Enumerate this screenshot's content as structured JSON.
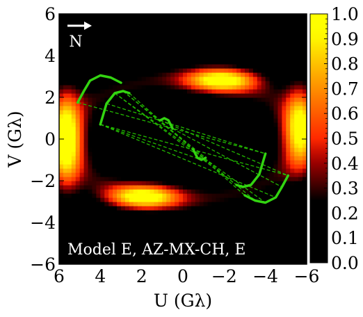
{
  "chart_data": {
    "type": "heatmap",
    "xlabel": "U (Gλ)",
    "ylabel": "V (Gλ)",
    "xlim": [
      6,
      -6
    ],
    "ylim": [
      -6,
      6
    ],
    "x_ticks": [
      "6",
      "4",
      "2",
      "0",
      "−2",
      "−4",
      "−6"
    ],
    "y_ticks": [
      "−6",
      "−4",
      "−2",
      "0",
      "2",
      "4",
      "6"
    ],
    "colorbar": {
      "range": [
        0.0,
        1.0
      ],
      "colormap": "gnuplot2",
      "ticks": [
        "0.0",
        "0.1",
        "0.2",
        "0.3",
        "0.4",
        "0.5",
        "0.6",
        "0.7",
        "0.8",
        "0.9",
        "1.0"
      ]
    },
    "annotation": "Model E, AZ-MX-CH, E",
    "compass_label": "N",
    "intensity_blobs": [
      {
        "u": 5.7,
        "v": 0.0,
        "su": 0.55,
        "sv": 1.6,
        "peak": 0.9
      },
      {
        "u": -5.7,
        "v": 0.6,
        "su": 0.55,
        "sv": 1.4,
        "peak": 0.78
      },
      {
        "u": -1.9,
        "v": 2.85,
        "su": 1.2,
        "sv": 0.4,
        "peak": 0.82
      },
      {
        "u": 1.9,
        "v": -2.75,
        "su": 1.2,
        "sv": 0.4,
        "peak": 0.82
      }
    ],
    "intensity_ring": {
      "a": 5.6,
      "b": 2.9,
      "width": 0.55,
      "peak": 0.27
    },
    "uv_tracks": [
      {
        "name": "track-1",
        "points": [
          [
            4.0,
            0.7
          ],
          [
            3.7,
            1.7
          ],
          [
            3.3,
            2.2
          ],
          [
            2.9,
            2.3
          ],
          [
            2.6,
            2.2
          ]
        ]
      },
      {
        "name": "track-1-mirror",
        "points": [
          [
            -4.0,
            -0.7
          ],
          [
            -3.7,
            -1.7
          ],
          [
            -3.3,
            -2.2
          ],
          [
            -2.9,
            -2.3
          ],
          [
            -2.6,
            -2.2
          ]
        ]
      },
      {
        "name": "track-2",
        "points": [
          [
            1.1,
            0.9
          ],
          [
            0.9,
            1.0
          ],
          [
            0.7,
            0.9
          ],
          [
            0.5,
            0.5
          ]
        ]
      },
      {
        "name": "track-2-mirror",
        "points": [
          [
            -1.1,
            -0.9
          ],
          [
            -0.9,
            -1.0
          ],
          [
            -0.7,
            -0.9
          ],
          [
            -0.5,
            -0.5
          ]
        ]
      },
      {
        "name": "track-3",
        "points": [
          [
            -3.0,
            -2.7
          ],
          [
            -3.5,
            -2.95
          ],
          [
            -4.0,
            -3.05
          ],
          [
            -4.5,
            -2.8
          ],
          [
            -4.8,
            -2.3
          ],
          [
            -5.1,
            -1.75
          ]
        ]
      },
      {
        "name": "track-3-mirror",
        "points": [
          [
            3.0,
            2.7
          ],
          [
            3.5,
            2.95
          ],
          [
            4.0,
            3.05
          ],
          [
            4.5,
            2.8
          ],
          [
            4.8,
            2.3
          ],
          [
            5.1,
            1.75
          ]
        ]
      }
    ],
    "uv_dashed_links": [
      [
        [
          4.0,
          0.7
        ],
        [
          -5.1,
          -1.75
        ]
      ],
      [
        [
          4.0,
          0.7
        ],
        [
          -4.5,
          -2.8
        ]
      ],
      [
        [
          3.3,
          2.2
        ],
        [
          -4.0,
          -3.05
        ]
      ],
      [
        [
          2.9,
          2.3
        ],
        [
          -3.5,
          -2.95
        ]
      ],
      [
        [
          2.6,
          2.2
        ],
        [
          -3.0,
          -2.7
        ]
      ],
      [
        [
          1.1,
          0.9
        ],
        [
          -5.1,
          -1.75
        ]
      ],
      [
        [
          0.5,
          0.5
        ],
        [
          -4.8,
          -2.3
        ]
      ],
      [
        [
          3.7,
          1.7
        ],
        [
          -4.0,
          -0.7
        ]
      ],
      [
        [
          2.9,
          2.3
        ],
        [
          -1.1,
          -0.9
        ]
      ],
      [
        [
          4.0,
          0.7
        ],
        [
          -0.9,
          -1.0
        ]
      ],
      [
        [
          3.3,
          2.2
        ],
        [
          -2.6,
          -2.2
        ]
      ],
      [
        [
          5.1,
          1.75
        ],
        [
          -4.0,
          -0.7
        ]
      ]
    ]
  }
}
